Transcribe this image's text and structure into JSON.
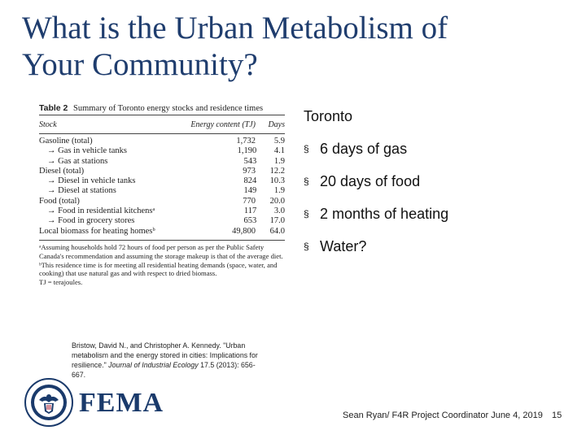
{
  "title": {
    "line1": "What is the Urban Metabolism of",
    "line2": "Your Community?"
  },
  "table": {
    "caption_label": "Table 2",
    "caption_text": "Summary of Toronto energy stocks and residence times",
    "headers": {
      "stock": "Stock",
      "energy": "Energy content (TJ)",
      "days": "Days"
    },
    "rows": [
      {
        "stock": "Gasoline (total)",
        "energy": "1,732",
        "days": "5.9",
        "indent": false
      },
      {
        "stock": "→ Gas in vehicle tanks",
        "energy": "1,190",
        "days": "4.1",
        "indent": true
      },
      {
        "stock": "→ Gas at stations",
        "energy": "543",
        "days": "1.9",
        "indent": true
      },
      {
        "stock": "Diesel (total)",
        "energy": "973",
        "days": "12.2",
        "indent": false
      },
      {
        "stock": "→ Diesel in vehicle tanks",
        "energy": "824",
        "days": "10.3",
        "indent": true
      },
      {
        "stock": "→ Diesel at stations",
        "energy": "149",
        "days": "1.9",
        "indent": true
      },
      {
        "stock": "Food (total)",
        "energy": "770",
        "days": "20.0",
        "indent": false
      },
      {
        "stock": "→ Food in residential kitchensᵃ",
        "energy": "117",
        "days": "3.0",
        "indent": true
      },
      {
        "stock": "→ Food in grocery stores",
        "energy": "653",
        "days": "17.0",
        "indent": true
      },
      {
        "stock": "Local biomass for heating homesᵇ",
        "energy": "49,800",
        "days": "64.0",
        "indent": false
      }
    ],
    "notes": [
      "ᵃAssuming households hold 72 hours of food per person as per the Public Safety Canada's recommendation and assuming the storage makeup is that of the average diet.",
      "ᵇThis residence time is for meeting all residential heating demands (space, water, and cooking) that use natural gas and with respect to dried biomass.",
      "TJ = terajoules."
    ]
  },
  "bullets": {
    "heading": "Toronto",
    "marker": "§",
    "items": [
      "6 days of gas",
      "20 days of food",
      "2 months of heating",
      "Water?"
    ]
  },
  "citation": {
    "text_before": "Bristow, David N., and Christopher A. Kennedy. \"Urban metabolism and the energy stored in cities: Implications for resilience.\" ",
    "journal": "Journal of Industrial Ecology",
    "text_after": " 17.5 (2013): 656-667."
  },
  "logo": {
    "wordmark": "FEMA",
    "seal_icon": "dhs-seal-icon",
    "colors": {
      "navy": "#1a3a6b",
      "title": "#1f3d6e"
    }
  },
  "footer": {
    "text": "Sean Ryan/ F4R Project Coordinator June 4, 2019",
    "page_number": "15"
  }
}
